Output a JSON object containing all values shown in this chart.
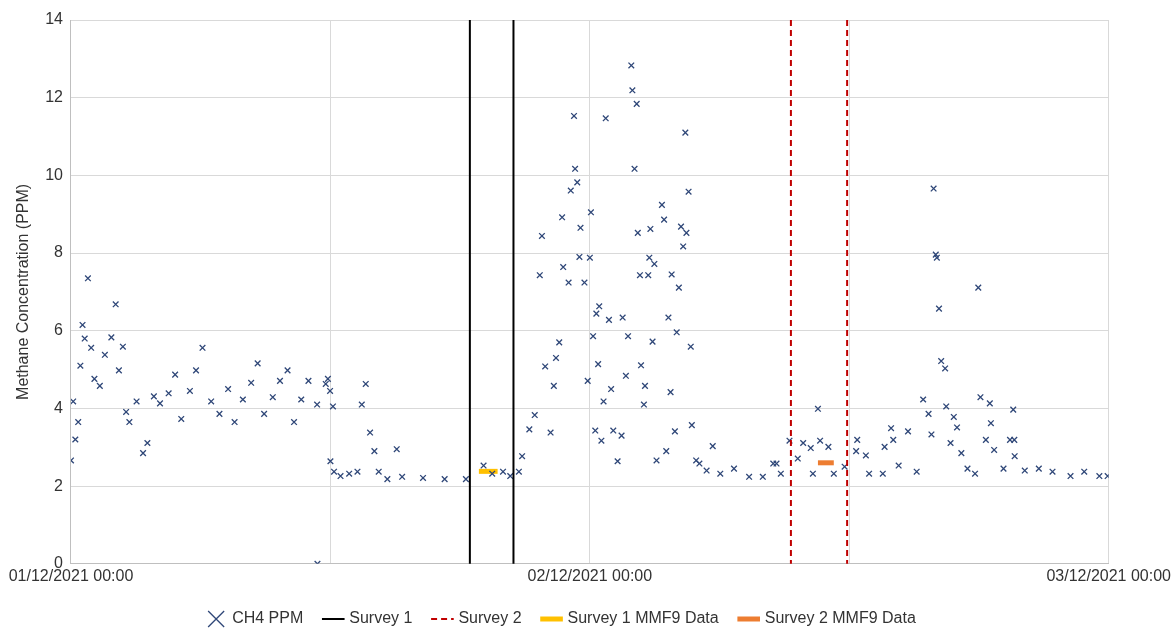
{
  "chart_data": {
    "type": "scatter",
    "ylabel": "Methane Concentration (PPM)",
    "xlim": [
      "2021-12-01T00:00",
      "2021-12-03T00:00"
    ],
    "xticks": [
      {
        "value": "2021-12-01T00:00",
        "label": "01/12/2021 00:00"
      },
      {
        "value": "2021-12-01T12:00",
        "label": null
      },
      {
        "value": "2021-12-02T00:00",
        "label": "02/12/2021 00:00"
      },
      {
        "value": "2021-12-02T12:00",
        "label": null
      },
      {
        "value": "2021-12-03T00:00",
        "label": "03/12/2021 00:00"
      }
    ],
    "ylim": [
      0,
      14
    ],
    "yticks": [
      0,
      2,
      4,
      6,
      8,
      10,
      12,
      14
    ],
    "grid": true,
    "legend": "bottom",
    "series": [
      {
        "name": "CH4 PPM",
        "color": "#2f4778",
        "marker": "cross",
        "x": [
          "2021-12-01T00:00",
          "2021-12-01T00:06",
          "2021-12-01T00:12",
          "2021-12-01T00:20",
          "2021-12-01T00:26",
          "2021-12-01T00:32",
          "2021-12-01T00:38",
          "2021-12-01T00:47",
          "2021-12-01T00:56",
          "2021-12-01T01:05",
          "2021-12-01T01:20",
          "2021-12-01T01:34",
          "2021-12-01T01:52",
          "2021-12-01T02:04",
          "2021-12-01T02:13",
          "2021-12-01T02:24",
          "2021-12-01T02:33",
          "2021-12-01T02:42",
          "2021-12-01T03:02",
          "2021-12-01T03:20",
          "2021-12-01T03:32",
          "2021-12-01T03:50",
          "2021-12-01T04:07",
          "2021-12-01T04:31",
          "2021-12-01T04:49",
          "2021-12-01T05:06",
          "2021-12-01T05:30",
          "2021-12-01T05:47",
          "2021-12-01T06:05",
          "2021-12-01T06:29",
          "2021-12-01T06:52",
          "2021-12-01T07:16",
          "2021-12-01T07:34",
          "2021-12-01T07:57",
          "2021-12-01T08:20",
          "2021-12-01T08:38",
          "2021-12-01T08:56",
          "2021-12-01T09:20",
          "2021-12-01T09:40",
          "2021-12-01T10:01",
          "2021-12-01T10:19",
          "2021-12-01T10:39",
          "2021-12-01T10:59",
          "2021-12-01T11:23",
          "2021-12-01T11:47",
          "2021-12-01T11:53",
          "2021-12-01T11:59",
          "2021-12-01T12:07",
          "2021-12-01T11:24",
          "2021-12-01T12:00",
          "2021-12-01T12:10",
          "2021-12-01T12:28",
          "2021-12-01T12:52",
          "2021-12-01T13:15",
          "2021-12-01T13:27",
          "2021-12-01T13:38",
          "2021-12-01T13:50",
          "2021-12-01T14:02",
          "2021-12-01T14:14",
          "2021-12-01T14:38",
          "2021-12-01T15:04",
          "2021-12-01T15:19",
          "2021-12-01T16:17",
          "2021-12-01T17:17",
          "2021-12-01T18:16",
          "2021-12-01T19:05",
          "2021-12-01T19:29",
          "2021-12-01T19:59",
          "2021-12-01T20:19",
          "2021-12-01T20:43",
          "2021-12-01T20:52",
          "2021-12-01T21:12",
          "2021-12-01T21:27",
          "2021-12-01T21:41",
          "2021-12-01T21:47",
          "2021-12-01T21:56",
          "2021-12-01T22:11",
          "2021-12-01T22:20",
          "2021-12-01T22:26",
          "2021-12-01T22:35",
          "2021-12-01T22:43",
          "2021-12-01T22:46",
          "2021-12-01T23:01",
          "2021-12-01T23:07",
          "2021-12-01T23:16",
          "2021-12-01T23:19",
          "2021-12-01T23:25",
          "2021-12-01T23:31",
          "2021-12-01T23:34",
          "2021-12-01T23:45",
          "2021-12-01T23:54",
          "2021-12-02T00:00",
          "2021-12-02T00:03",
          "2021-12-02T00:09",
          "2021-12-02T00:15",
          "2021-12-02T00:18",
          "2021-12-02T00:23",
          "2021-12-02T00:26",
          "2021-12-02T00:32",
          "2021-12-02T00:38",
          "2021-12-02T00:44",
          "2021-12-02T00:53",
          "2021-12-02T00:59",
          "2021-12-02T01:05",
          "2021-12-02T01:17",
          "2021-12-02T01:28",
          "2021-12-02T01:31",
          "2021-12-02T01:40",
          "2021-12-02T01:46",
          "2021-12-02T01:55",
          "2021-12-02T01:58",
          "2021-12-02T02:04",
          "2021-12-02T02:10",
          "2021-12-02T02:13",
          "2021-12-02T02:19",
          "2021-12-02T02:22",
          "2021-12-02T02:30",
          "2021-12-02T02:33",
          "2021-12-02T02:42",
          "2021-12-02T02:45",
          "2021-12-02T02:48",
          "2021-12-02T02:54",
          "2021-12-02T02:59",
          "2021-12-02T03:05",
          "2021-12-02T03:20",
          "2021-12-02T03:26",
          "2021-12-02T03:32",
          "2021-12-02T03:38",
          "2021-12-02T03:44",
          "2021-12-02T03:47",
          "2021-12-02T03:56",
          "2021-12-02T04:01",
          "2021-12-02T04:07",
          "2021-12-02T04:13",
          "2021-12-02T04:19",
          "2021-12-02T04:25",
          "2021-12-02T04:28",
          "2021-12-02T04:34",
          "2021-12-02T04:40",
          "2021-12-02T04:43",
          "2021-12-02T04:55",
          "2021-12-02T05:04",
          "2021-12-02T05:24",
          "2021-12-02T05:41",
          "2021-12-02T06:02",
          "2021-12-02T06:40",
          "2021-12-02T07:22",
          "2021-12-02T08:00",
          "2021-12-02T08:29",
          "2021-12-02T08:38",
          "2021-12-02T08:50",
          "2021-12-02T09:14",
          "2021-12-02T09:37",
          "2021-12-02T09:52",
          "2021-12-02T10:13",
          "2021-12-02T10:19",
          "2021-12-02T10:33",
          "2021-12-02T10:39",
          "2021-12-02T11:02",
          "2021-12-02T11:17",
          "2021-12-02T11:47",
          "2021-12-02T12:19",
          "2021-12-02T12:22",
          "2021-12-02T12:46",
          "2021-12-02T12:55",
          "2021-12-02T13:33",
          "2021-12-02T13:38",
          "2021-12-02T13:56",
          "2021-12-02T14:02",
          "2021-12-02T14:17",
          "2021-12-02T14:43",
          "2021-12-02T15:07",
          "2021-12-02T15:25",
          "2021-12-02T15:40",
          "2021-12-02T15:48",
          "2021-12-02T15:54",
          "2021-12-02T16:00",
          "2021-12-02T16:03",
          "2021-12-02T16:09",
          "2021-12-02T16:15",
          "2021-12-02T16:26",
          "2021-12-02T16:29",
          "2021-12-02T16:41",
          "2021-12-02T16:50",
          "2021-12-02T16:59",
          "2021-12-02T17:11",
          "2021-12-02T17:28",
          "2021-12-02T17:49",
          "2021-12-02T17:58",
          "2021-12-02T18:04",
          "2021-12-02T18:19",
          "2021-12-02T18:30",
          "2021-12-02T18:33",
          "2021-12-02T18:42",
          "2021-12-02T19:08",
          "2021-12-02T19:26",
          "2021-12-02T19:35",
          "2021-12-02T19:38",
          "2021-12-02T19:39",
          "2021-12-02T20:07",
          "2021-12-02T20:46",
          "2021-12-02T21:24",
          "2021-12-02T22:14",
          "2021-12-02T22:52",
          "2021-12-02T23:34",
          "2021-12-02T23:57"
        ],
        "values": [
          2.66,
          4.18,
          3.2,
          3.65,
          5.1,
          6.15,
          5.8,
          7.35,
          5.56,
          4.76,
          4.58,
          5.38,
          5.83,
          6.68,
          4.98,
          5.59,
          3.91,
          3.65,
          4.18,
          2.85,
          3.11,
          4.31,
          4.13,
          4.39,
          4.87,
          3.73,
          4.45,
          4.98,
          5.56,
          4.18,
          3.86,
          4.5,
          3.65,
          4.23,
          4.66,
          5.16,
          3.86,
          4.29,
          4.71,
          4.98,
          3.65,
          4.23,
          4.71,
          4.1,
          4.63,
          4.76,
          4.45,
          4.05,
          0,
          2.64,
          2.37,
          2.26,
          2.32,
          2.37,
          4.1,
          4.63,
          3.38,
          2.9,
          2.37,
          2.18,
          2.95,
          2.24,
          2.21,
          2.18,
          2.18,
          2.53,
          2.32,
          2.37,
          2.26,
          2.37,
          2.77,
          3.46,
          3.83,
          7.43,
          8.44,
          5.08,
          3.38,
          4.58,
          5.3,
          5.7,
          8.92,
          7.64,
          7.24,
          9.61,
          11.53,
          10.17,
          9.82,
          7.9,
          8.65,
          7.24,
          4.71,
          7.88,
          9.05,
          5.86,
          3.43,
          6.44,
          5.14,
          6.63,
          3.17,
          4.18,
          11.47,
          6.28,
          4.5,
          3.43,
          2.64,
          3.3,
          6.34,
          4.84,
          5.86,
          12.83,
          12.19,
          10.17,
          11.84,
          8.52,
          7.43,
          5.11,
          4.1,
          4.58,
          7.43,
          7.88,
          8.62,
          5.72,
          7.72,
          2.66,
          9.24,
          8.86,
          2.9,
          6.34,
          4.42,
          7.45,
          3.41,
          5.96,
          7.11,
          8.68,
          8.17,
          11.1,
          8.52,
          9.58,
          5.59,
          3.57,
          2.66,
          2.58,
          2.4,
          3.03,
          2.32,
          2.45,
          2.24,
          2.24,
          2.58,
          2.58,
          2.32,
          3.17,
          2.71,
          3.11,
          2.98,
          2.32,
          3.99,
          3.17,
          3.01,
          2.32,
          2.5,
          2.9,
          3.19,
          2.79,
          2.32,
          2.32,
          3.01,
          3.49,
          3.19,
          2.53,
          3.41,
          2.37,
          4.23,
          3.86,
          3.33,
          9.66,
          7.96,
          7.88,
          6.57,
          5.22,
          5.03,
          4.05,
          3.11,
          3.78,
          3.51,
          2.85,
          2.45,
          2.32,
          7.11,
          4.29,
          3.19,
          4.13,
          3.62,
          2.93,
          2.45,
          3.19,
          3.97,
          3.19,
          2.77,
          2.4,
          2.45,
          2.37,
          2.26,
          2.37,
          2.26,
          2.26
        ]
      },
      {
        "name": "Survey 1 MMF9 Data",
        "type": "line",
        "marker": "none",
        "color": "#ffc000",
        "x": [
          "2021-12-01T18:52",
          "2021-12-01T19:44"
        ],
        "values": [
          2.38,
          2.38
        ]
      },
      {
        "name": "Survey 2 MMF9 Data",
        "type": "line",
        "marker": "none",
        "color": "#ed7d31",
        "x": [
          "2021-12-02T10:33",
          "2021-12-02T11:17"
        ],
        "values": [
          2.6,
          2.6
        ]
      }
    ],
    "ref_lines": [
      {
        "axis": "x",
        "value": "2021-12-01T18:27",
        "label": "Survey 1",
        "color": "#000000",
        "line_style": "solid"
      },
      {
        "axis": "x",
        "value": "2021-12-01T20:28",
        "color": "#000000",
        "line_style": "solid"
      },
      {
        "axis": "x",
        "value": "2021-12-02T09:18",
        "label": "Survey 2",
        "color": "#c00000",
        "line_style": "dashed"
      },
      {
        "axis": "x",
        "value": "2021-12-02T11:54",
        "color": "#c00000",
        "line_style": "dashed"
      }
    ]
  }
}
